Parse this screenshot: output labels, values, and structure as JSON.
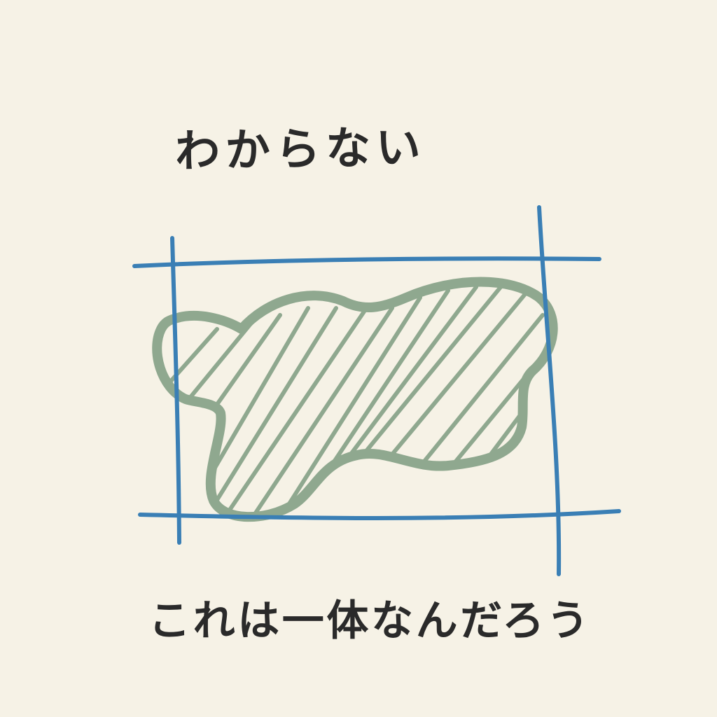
{
  "texts": {
    "top": "わからない",
    "bottom": "これは一体なんだろう"
  },
  "colors": {
    "background": "#f6f2e6",
    "frame": "#3a7fb5",
    "blob": "#8fa88f",
    "ink": "#2a2a2a"
  }
}
